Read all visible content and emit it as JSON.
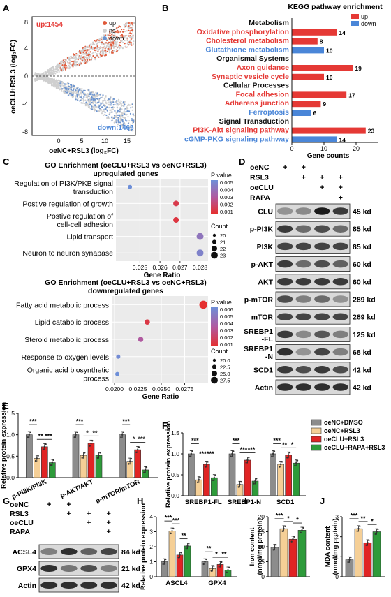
{
  "panels": [
    "A",
    "B",
    "C",
    "D",
    "E",
    "F",
    "G",
    "H",
    "I",
    "J"
  ],
  "volcano": {
    "legend": [
      "up",
      "ns",
      "down"
    ],
    "colors": {
      "up": "#e05a3a",
      "ns": "#cfcfcf",
      "down": "#6a93cf"
    },
    "up_label": "up:1454",
    "down_label": "down:1466",
    "ylabel": "oeCLU+RSL3 (log₂FC)",
    "xlabel": "oeNC+RSL3 (log₂FC)",
    "xticks": [
      "0",
      "5",
      "10",
      "15"
    ],
    "yticks": [
      "8",
      "4",
      "0",
      "-4",
      "-8"
    ]
  },
  "kegg": {
    "title": "KEGG pathway enrichment",
    "legend": [
      "up",
      "down"
    ],
    "colors": {
      "up": "#e53935",
      "down": "#4a86d8",
      "header": "#111111"
    },
    "rows": [
      {
        "label": "Metabolism",
        "type": "header"
      },
      {
        "label": "Oxidative phosphorylation",
        "type": "up",
        "value": 14
      },
      {
        "label": "Cholesterol metabolism",
        "type": "up",
        "value": 8
      },
      {
        "label": "Glutathione metabolism",
        "type": "down",
        "value": 10
      },
      {
        "label": "Organismal Systems",
        "type": "header"
      },
      {
        "label": "Axon guidance",
        "type": "up",
        "value": 19
      },
      {
        "label": "Synaptic vesicle cycle",
        "type": "up",
        "value": 10
      },
      {
        "label": "Cellular Processes",
        "type": "header"
      },
      {
        "label": "Focal adhesion",
        "type": "up",
        "value": 17
      },
      {
        "label": "Adherens junction",
        "type": "up",
        "value": 9
      },
      {
        "label": "Ferroptosis",
        "type": "down",
        "value": 6
      },
      {
        "label": "Signal Transduction",
        "type": "header"
      },
      {
        "label": "PI3K-Akt signaling pathway",
        "type": "up",
        "value": 23
      },
      {
        "label": "cGMP-PKG signaling pathway",
        "type": "down",
        "value": 14
      }
    ],
    "xticks": [
      "0",
      "10",
      "20"
    ],
    "xlabel": "Gene counts"
  },
  "go_up": {
    "title1": "GO Enrichment  (oeCLU+RSL3 vs oeNC+RSL3)",
    "title2": "upregulated genes",
    "terms": [
      {
        "label": "Regulation of PI3K/PKB signal",
        "label2": "transduction",
        "ratio": 0.0245,
        "p": 0.005,
        "count": 20
      },
      {
        "label": "Postive regulation of growth",
        "label2": "",
        "ratio": 0.0268,
        "p": 0.0015,
        "count": 21
      },
      {
        "label": "Postive regulation of",
        "label2": "cell-cell adhesion",
        "ratio": 0.0268,
        "p": 0.0013,
        "count": 21
      },
      {
        "label": "Lipid transport",
        "label2": "",
        "ratio": 0.028,
        "p": 0.004,
        "count": 22
      },
      {
        "label": "Neuron to neuron synapase",
        "label2": "",
        "ratio": 0.028,
        "p": 0.0045,
        "count": 22
      }
    ],
    "xticks": [
      "0.025",
      "0.026",
      "0.027",
      "0.028"
    ],
    "xlabel": "Gene Ratio",
    "legend_p_title": "P value",
    "p_ticks": [
      "0.005",
      "0.004",
      "0.003",
      "0.002",
      "0.001"
    ],
    "legend_count_title": "Count",
    "count_ticks": [
      "20",
      "21",
      "22",
      "23"
    ]
  },
  "go_down": {
    "title1": "GO Enrichment  (oeCLU+RSL3 vs oeNC+RSL3)",
    "title2": "downregulated genes",
    "terms": [
      {
        "label": "Fatty acid metabolic process",
        "label2": "",
        "ratio": 0.0295,
        "p": 0.001,
        "count": 27
      },
      {
        "label": "Lipid catabolic process",
        "label2": "",
        "ratio": 0.0235,
        "p": 0.0015,
        "count": 22
      },
      {
        "label": "Steroid metabolic process",
        "label2": "",
        "ratio": 0.0228,
        "p": 0.0035,
        "count": 22
      },
      {
        "label": "Response to oxygen levels",
        "label2": "",
        "ratio": 0.0204,
        "p": 0.0058,
        "count": 20
      },
      {
        "label": "Organic acid biosynthetic",
        "label2": "process",
        "ratio": 0.0203,
        "p": 0.006,
        "count": 20
      }
    ],
    "xticks": [
      "0.0200",
      "0.0225",
      "0.0250",
      "0.0275"
    ],
    "xlabel": "Gene Ratio",
    "legend_p_title": "P value",
    "p_ticks": [
      "0.006",
      "0.005",
      "0.004",
      "0.003",
      "0.002",
      "0.001"
    ],
    "legend_count_title": "Count",
    "count_ticks": [
      "20.0",
      "22.5",
      "25.0",
      "27.5"
    ]
  },
  "blot_d": {
    "conditions": [
      {
        "label": "oeNC",
        "signs": [
          "+",
          "+",
          "",
          ""
        ]
      },
      {
        "label": "RSL3",
        "signs": [
          "",
          "+",
          "+",
          "+"
        ]
      },
      {
        "label": "oeCLU",
        "signs": [
          "",
          "",
          "+",
          "+"
        ]
      },
      {
        "label": "RAPA",
        "signs": [
          "",
          "",
          "",
          "+"
        ]
      }
    ],
    "bands": [
      {
        "label": "CLU",
        "kd": "45 kd"
      },
      {
        "label": "p-PI3K",
        "kd": "85 kd"
      },
      {
        "label": "PI3K",
        "kd": "85 kd"
      },
      {
        "label": "p-AKT",
        "kd": "60 kd"
      },
      {
        "label": "AKT",
        "kd": "60 kd"
      },
      {
        "label": "p-mTOR",
        "kd": "289 kd"
      },
      {
        "label": "mTOR",
        "kd": "289 kd"
      },
      {
        "label": "SREBP1 -FL",
        "kd": "125 kd"
      },
      {
        "label": "SREBP1 -N",
        "kd": "68 kd"
      },
      {
        "label": "SCD1",
        "kd": "42 kd"
      },
      {
        "label": "Actin",
        "kd": "42 kd"
      }
    ]
  },
  "groups": {
    "names": [
      "oeNC+DMSO",
      "oeNC+RSL3",
      "oeCLU+RSL3",
      "oeCLU+RAPA+RSL3"
    ],
    "colors": [
      "#8c8c8c",
      "#f5cf96",
      "#e02424",
      "#2e9b3a"
    ]
  },
  "chart_data": [
    {
      "type": "bar",
      "panel": "E",
      "ylabel": "Relative protein expression",
      "categories": [
        "p-PI3K/PI3K",
        "p-AKT/AKT",
        "p-mTOR/mTOR"
      ],
      "ylim": [
        0,
        1.5
      ],
      "yticks": [
        "0.0",
        "0.5",
        "1.0",
        "1.5"
      ],
      "series": [
        {
          "name": "oeNC+DMSO",
          "values": [
            1.0,
            1.0,
            1.0
          ]
        },
        {
          "name": "oeNC+RSL3",
          "values": [
            0.45,
            0.52,
            0.38
          ]
        },
        {
          "name": "oeCLU+RSL3",
          "values": [
            0.72,
            0.8,
            0.65
          ]
        },
        {
          "name": "oeCLU+RAPA+RSL3",
          "values": [
            0.35,
            0.52,
            0.18
          ]
        }
      ],
      "sig": [
        "***",
        "**",
        "***",
        "***",
        "*",
        "**",
        "***",
        "*",
        "***"
      ]
    },
    {
      "type": "bar",
      "panel": "F",
      "ylabel": "Relative protein expression",
      "categories": [
        "SREBP1-FL",
        "SREBP1-N",
        "SCD1"
      ],
      "ylim": [
        0,
        1.5
      ],
      "yticks": [
        "0.0",
        "0.5",
        "1.0",
        "1.5"
      ],
      "series": [
        {
          "name": "oeNC+DMSO",
          "values": [
            1.0,
            1.0,
            1.0
          ]
        },
        {
          "name": "oeNC+RSL3",
          "values": [
            0.38,
            0.27,
            0.75
          ]
        },
        {
          "name": "oeCLU+RSL3",
          "values": [
            0.75,
            0.85,
            0.97
          ]
        },
        {
          "name": "oeCLU+RAPA+RSL3",
          "values": [
            0.43,
            0.35,
            0.78
          ]
        }
      ],
      "sig": [
        "***",
        "***",
        "***",
        "***",
        "***",
        "***",
        "***",
        "**",
        "*"
      ]
    },
    {
      "type": "bar",
      "panel": "H",
      "ylabel": "Relative protein expression",
      "categories": [
        "ASCL4",
        "GPX4"
      ],
      "ylim": [
        0,
        4
      ],
      "yticks": [
        "0",
        "1",
        "2",
        "3",
        "4"
      ],
      "series": [
        {
          "name": "oeNC+DMSO",
          "values": [
            1.0,
            1.0
          ]
        },
        {
          "name": "oeNC+RSL3",
          "values": [
            3.05,
            0.55
          ]
        },
        {
          "name": "oeCLU+RSL3",
          "values": [
            1.45,
            0.82
          ]
        },
        {
          "name": "oeCLU+RAPA+RSL3",
          "values": [
            2.05,
            0.45
          ]
        }
      ],
      "sig": [
        "***",
        "***",
        "**",
        "**",
        "*",
        "**"
      ]
    },
    {
      "type": "bar",
      "panel": "I",
      "ylabel": "Iron content (nmol/mg protein)",
      "categories": [
        ""
      ],
      "ylim": [
        0,
        20
      ],
      "yticks": [
        "0",
        "5",
        "10",
        "15",
        "20"
      ],
      "series": [
        {
          "name": "oeNC+DMSO",
          "values": [
            9.8
          ]
        },
        {
          "name": "oeNC+RSL3",
          "values": [
            16.0
          ]
        },
        {
          "name": "oeCLU+RSL3",
          "values": [
            12.5
          ]
        },
        {
          "name": "oeCLU+RAPA+RSL3",
          "values": [
            15.5
          ]
        }
      ],
      "sig": [
        "***",
        "*",
        "*"
      ]
    },
    {
      "type": "bar",
      "panel": "J",
      "ylabel": "MDA content (nmol/mg protein)",
      "categories": [
        ""
      ],
      "ylim": [
        0,
        3
      ],
      "yticks": [
        "0",
        "1",
        "2",
        "3"
      ],
      "series": [
        {
          "name": "oeNC+DMSO",
          "values": [
            0.85
          ]
        },
        {
          "name": "oeNC+RSL3",
          "values": [
            2.4
          ]
        },
        {
          "name": "oeCLU+RSL3",
          "values": [
            1.7
          ]
        },
        {
          "name": "oeCLU+RAPA+RSL3",
          "values": [
            2.25
          ]
        }
      ],
      "sig": [
        "***",
        "**",
        "*"
      ]
    }
  ],
  "blot_g": {
    "conditions": [
      {
        "label": "oeNC",
        "signs": [
          "+",
          "+",
          "",
          ""
        ]
      },
      {
        "label": "RSL3",
        "signs": [
          "",
          "+",
          "+",
          "+"
        ]
      },
      {
        "label": "oeCLU",
        "signs": [
          "",
          "",
          "+",
          "+"
        ]
      },
      {
        "label": "RAPA",
        "signs": [
          "",
          "",
          "",
          "+"
        ]
      }
    ],
    "bands": [
      {
        "label": "ACSL4",
        "kd": "84 kd"
      },
      {
        "label": "GPX4",
        "kd": "21 kd"
      },
      {
        "label": "Actin",
        "kd": "42 kd"
      }
    ]
  }
}
